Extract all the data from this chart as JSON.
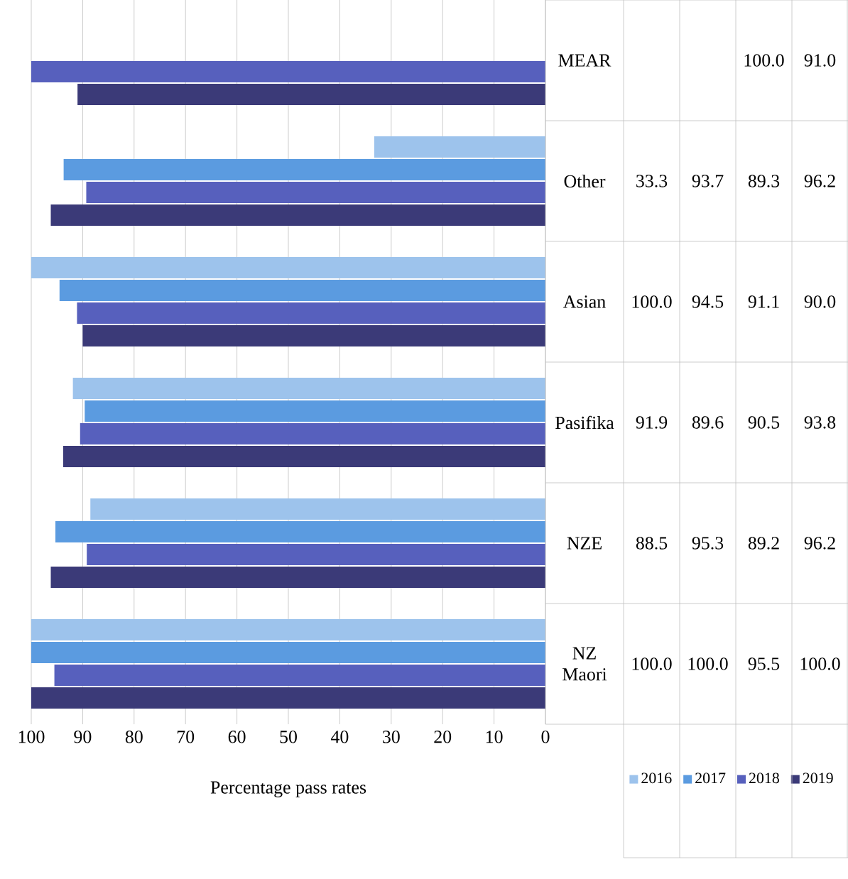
{
  "chart_data": {
    "type": "bar",
    "orientation": "horizontal",
    "xlabel": "Percentage pass rates",
    "categories": [
      "MEAR",
      "Other",
      "Asian",
      "Pasifika",
      "NZE",
      "NZ Maori"
    ],
    "series": [
      {
        "name": "2016",
        "color": "#9dc3ec",
        "values": [
          null,
          33.3,
          100.0,
          91.9,
          88.5,
          100.0
        ],
        "value_labels": [
          null,
          "33.3",
          "100.0",
          "91.9",
          "88.5",
          "100.0"
        ]
      },
      {
        "name": "2017",
        "color": "#5b9be0",
        "values": [
          null,
          93.7,
          94.5,
          89.6,
          95.3,
          100.0
        ],
        "value_labels": [
          null,
          "93.7",
          "94.5",
          "89.6",
          "95.3",
          "100.0"
        ]
      },
      {
        "name": "2018",
        "color": "#5760bd",
        "values": [
          100.0,
          89.3,
          91.1,
          90.5,
          89.2,
          95.5
        ],
        "value_labels": [
          "100.0",
          "89.3",
          "91.1",
          "90.5",
          "89.2",
          "95.5"
        ]
      },
      {
        "name": "2019",
        "color": "#3b3a78",
        "values": [
          91.0,
          96.2,
          90.0,
          93.8,
          96.2,
          100.0
        ],
        "value_labels": [
          "91.0",
          "96.2",
          "90.0",
          "93.8",
          "96.2",
          "100.0"
        ]
      }
    ],
    "xlim": [
      100,
      0
    ],
    "xticks": [
      100,
      90,
      80,
      70,
      60,
      50,
      40,
      30,
      20,
      10,
      0
    ],
    "grid": "x",
    "legend": "bottom"
  }
}
